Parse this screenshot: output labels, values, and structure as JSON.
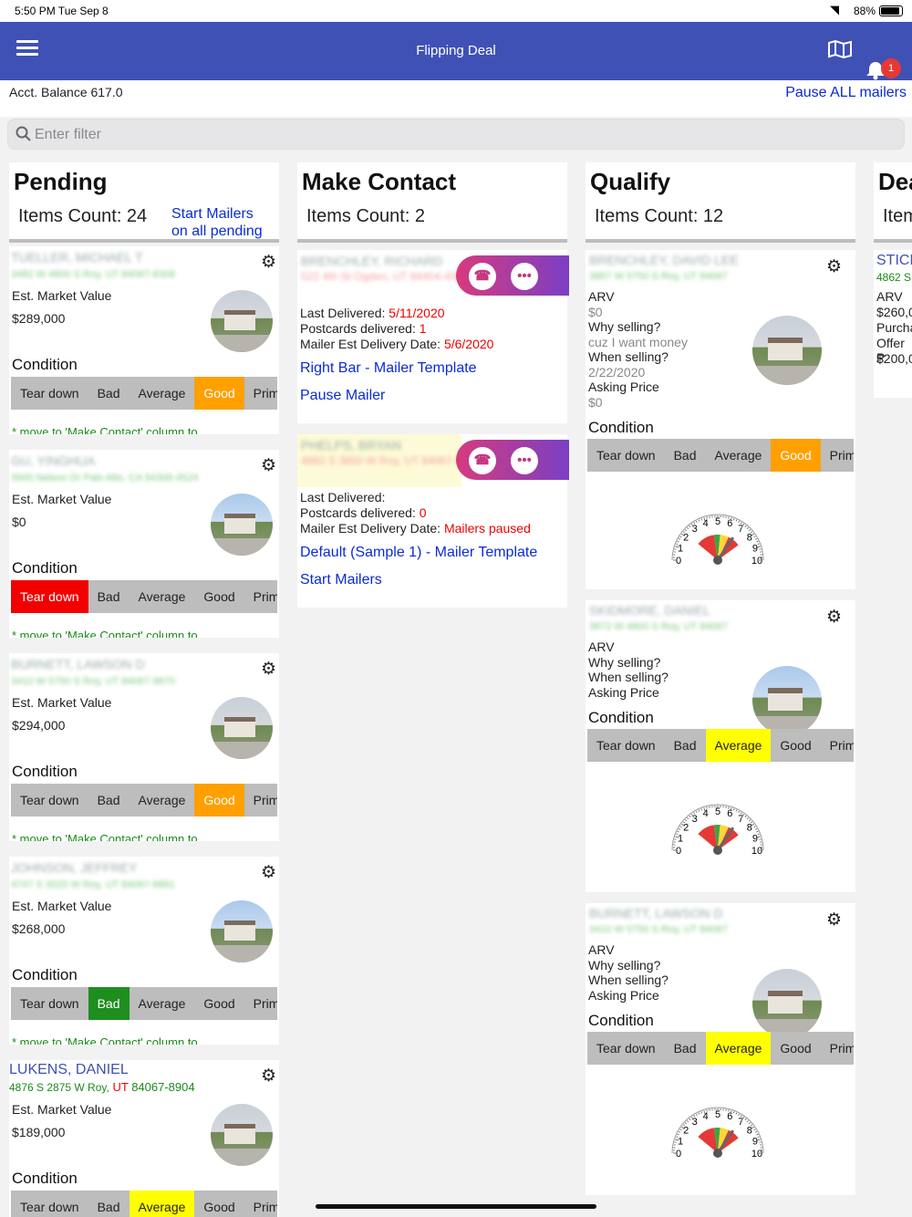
{
  "status_bar": {
    "time": "5:50 PM  Tue Sep 8",
    "battery": "88%"
  },
  "nav": {
    "title": "Flipping Deal",
    "notification_count": "1"
  },
  "info": {
    "balance": "Acct. Balance 617.0",
    "pause_all": "Pause ALL mailers"
  },
  "search": {
    "placeholder": "Enter filter"
  },
  "labels": {
    "est_market_value": "Est. Market Value",
    "condition": "Condition",
    "move_note": "* move to 'Make Contact' column to",
    "arv": "ARV",
    "why_selling": "Why selling?",
    "when_selling": "When selling?",
    "asking_price": "Asking Price",
    "last_delivered": "Last Delivered:",
    "postcards_delivered": "Postcards delivered:",
    "mailer_est_delivery": "Mailer Est Delivery Date:"
  },
  "condition_options": [
    "Tear down",
    "Bad",
    "Average",
    "Good",
    "Prim"
  ],
  "columns": {
    "pending": {
      "title": "Pending",
      "count": "Items Count: 24",
      "start_mailers": "Start Mailers",
      "on_all_pending": "on all pending"
    },
    "make_contact": {
      "title": "Make Contact",
      "count": "Items Count: 2"
    },
    "qualify": {
      "title": "Qualify",
      "count": "Items Count: 12"
    },
    "deal": {
      "title": "Deal",
      "count": "Items"
    }
  },
  "pending_cards": [
    {
      "name": "TUELLER, MICHAEL T",
      "address": "3482 W 4800 S Roy, UT 84067-8308",
      "value": "$289,000",
      "condition": "Good"
    },
    {
      "name": "GU, YINGHUA",
      "address": "3945 Nelson Dr Palo Alto, CA 94306-4524",
      "value": "$0",
      "condition": "Tear down"
    },
    {
      "name": "BURNETT, LAWSON D",
      "address": "3410 W 5750 S Roy, UT 84067-9870",
      "value": "$294,000",
      "condition": "Good"
    },
    {
      "name": "JOHNSON, JEFFREY",
      "address": "4747 S 3025 W Roy, UT 84067-8881",
      "value": "$268,000",
      "condition": "Bad"
    },
    {
      "name": "LUKENS, DANIEL",
      "address": "4876 S 2875 W Roy, UT 84067-8904",
      "addr_a": "4876 S 2875 W Roy,",
      "addr_state": "UT",
      "addr_zip": "84067-8904",
      "value": "$189,000",
      "condition": "Average"
    }
  ],
  "contact_cards": [
    {
      "name": "BRENCHLEY, RICHARD",
      "address": "522 4th St Ogden, UT 84404-4303",
      "last_delivered": "5/11/2020",
      "postcards": "1",
      "est_date": "5/6/2020",
      "template": "Right Bar - Mailer Template",
      "action": "Pause Mailer"
    },
    {
      "name": "PHELPS, BRYAN",
      "address": "4682 S 3850 W Roy, UT 84067-9983",
      "last_delivered": "",
      "postcards": "0",
      "est_date": "Mailers paused",
      "template": "Default (Sample 1) - Mailer Template",
      "action": "Start Mailers"
    }
  ],
  "qualify_cards": [
    {
      "name": "BRENCHLEY, DAVID LEE",
      "address": "3867 W 5750 S Roy, UT 84067",
      "arv": "$0",
      "why": "cuz I want money",
      "when": "2/22/2020",
      "asking": "$0",
      "condition": "Good"
    },
    {
      "name": "SKIDMORE, DANIEL",
      "address": "3872 W 4800 S Roy, UT 84067",
      "arv": "",
      "why": "",
      "when": "",
      "asking": "",
      "condition": "Average"
    },
    {
      "name": "BURNETT, LAWSON D",
      "address": "3410 W 5750 S Roy, UT 84067",
      "arv": "",
      "why": "",
      "when": "",
      "asking": "",
      "condition": "Average"
    }
  ],
  "deal_card": {
    "name": "STICK",
    "address": "4862 S",
    "arv_label": "ARV",
    "arv": "$260,0",
    "purchase": "Purcha",
    "offer": "Offer P",
    "offer_value": "$200,0"
  },
  "gauge_ticks": [
    "0",
    "1",
    "2",
    "3",
    "4",
    "5",
    "6",
    "7",
    "8",
    "9",
    "10"
  ]
}
